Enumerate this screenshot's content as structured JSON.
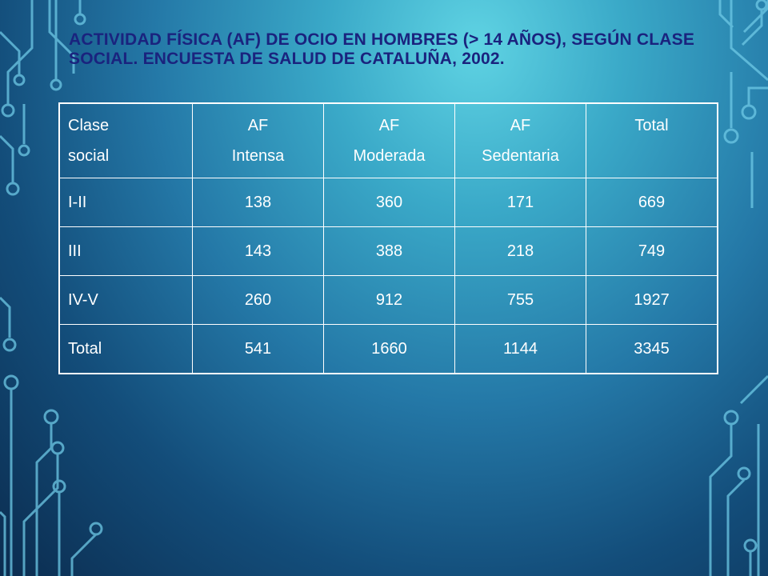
{
  "slide": {
    "title": "Actividad física (AF) de ocio en hombres (> 14 años), según clase social. Encuesta de Salud de Cataluña, 2002."
  },
  "table": {
    "headers": [
      {
        "line1": "Clase",
        "line2": "social"
      },
      {
        "line1": "AF",
        "line2": "Intensa"
      },
      {
        "line1": "AF",
        "line2": "Moderada"
      },
      {
        "line1": "AF",
        "line2": "Sedentaria"
      },
      {
        "line1": "Total",
        "line2": ""
      }
    ],
    "rows": [
      [
        "I-II",
        "138",
        "360",
        "171",
        "669"
      ],
      [
        "III",
        "143",
        "388",
        "218",
        "749"
      ],
      [
        "IV-V",
        "260",
        "912",
        "755",
        "1927"
      ],
      [
        "Total",
        "541",
        "1660",
        "1144",
        "3345"
      ]
    ]
  },
  "colors": {
    "title": "#1a237e",
    "table_text": "#ffffff",
    "table_border": "#ffffff",
    "circuit_lines": "#6ec9e6"
  }
}
